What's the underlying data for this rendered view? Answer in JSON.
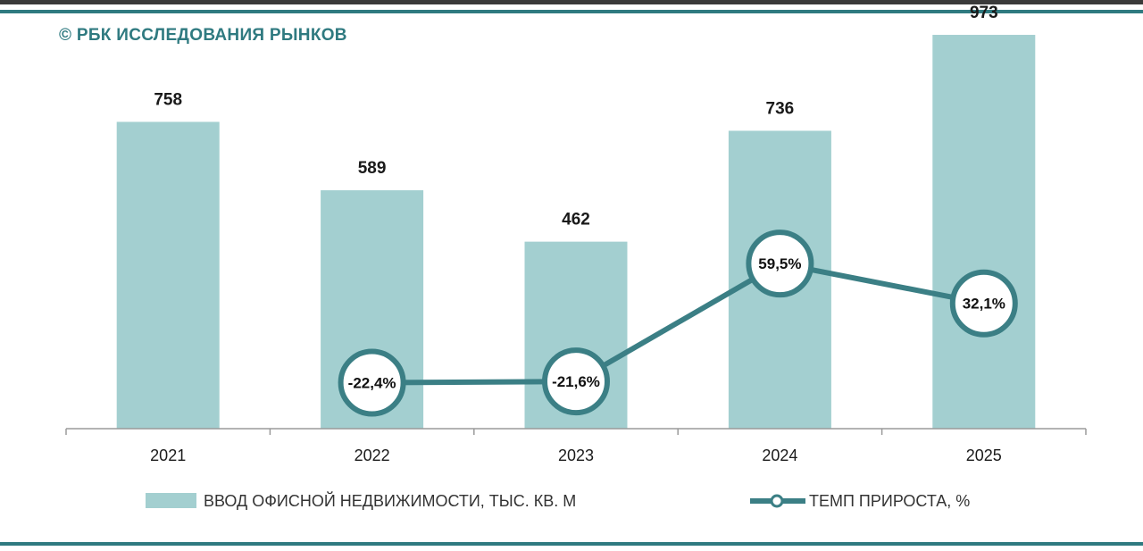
{
  "brand": "© РБК ИССЛЕДОВАНИЯ РЫНКОВ",
  "colors": {
    "bar": "#a3cfd0",
    "line": "#3b7f85",
    "accent": "#2f7a80"
  },
  "chart_data": {
    "type": "bar",
    "categories": [
      "2021",
      "2022",
      "2023",
      "2024",
      "2025"
    ],
    "series": [
      {
        "name": "ВВОД ОФИСНОЙ НЕДВИЖИМОСТИ, ТЫС. КВ. М",
        "type": "bar",
        "values": [
          758,
          589,
          462,
          736,
          973
        ],
        "labels": [
          "758",
          "589",
          "462",
          "736",
          "973"
        ]
      },
      {
        "name": "ТЕМП ПРИРОСТА, %",
        "type": "line",
        "values": [
          null,
          -22.4,
          -21.6,
          59.5,
          32.1
        ],
        "labels": [
          "",
          "-22,4%",
          "-21,6%",
          "59,5%",
          "32,1%"
        ]
      }
    ],
    "legend_position": "bottom",
    "grid": false
  }
}
